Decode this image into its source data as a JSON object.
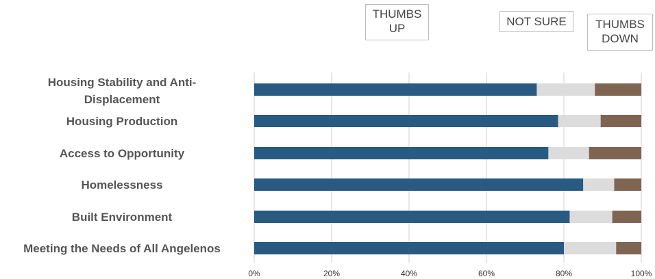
{
  "chart_data": {
    "type": "bar",
    "orientation": "horizontal",
    "stacked": true,
    "categories": [
      "Housing Stability and Anti-Displacement",
      "Housing Production",
      "Access to Opportunity",
      "Homelessness",
      "Built Environment",
      "Meeting the Needs of All Angelenos"
    ],
    "series": [
      {
        "name": "THUMBS UP",
        "color": "#285a82",
        "values": [
          73,
          78.5,
          76,
          85,
          81.5,
          80
        ]
      },
      {
        "name": "NOT SURE",
        "color": "#dcdcdc",
        "values": [
          15,
          11,
          10.5,
          8,
          11,
          13.5
        ]
      },
      {
        "name": "THUMBS DOWN",
        "color": "#806452",
        "values": [
          12,
          10.5,
          13.5,
          7,
          7.5,
          6.5
        ]
      }
    ],
    "xlim": [
      0,
      100
    ],
    "xticks": [
      "0%",
      "20%",
      "40%",
      "60%",
      "80%",
      "100%"
    ],
    "grid": true,
    "legend": "top"
  }
}
